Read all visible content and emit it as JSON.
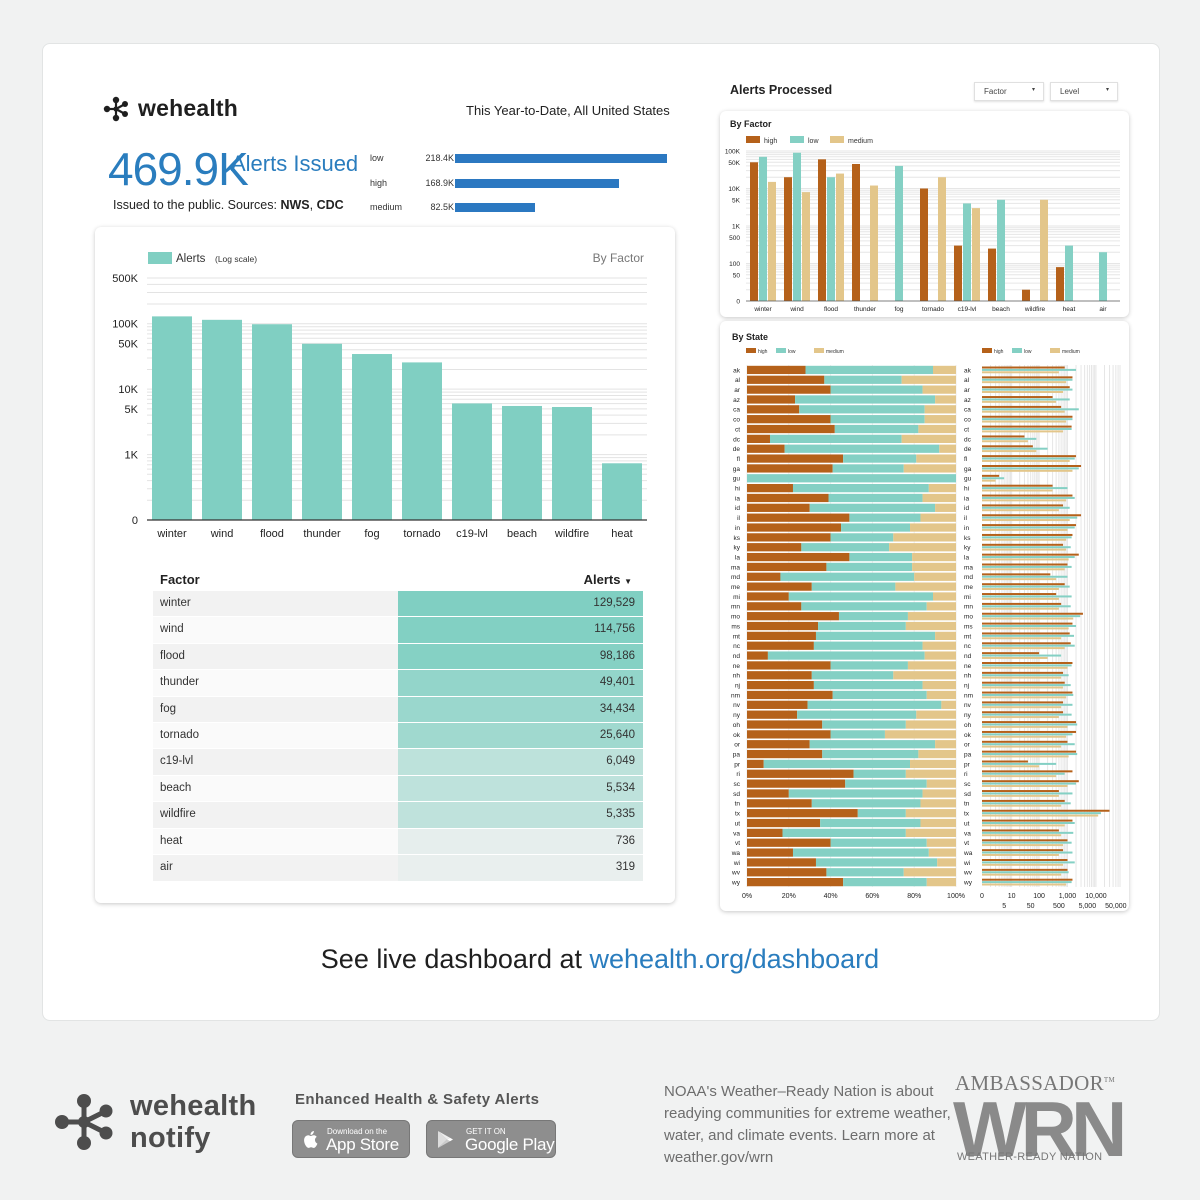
{
  "brand": {
    "name": "wehealth",
    "logo_icon": "wehealth-molecule-icon"
  },
  "header": {
    "scope": "This Year-to-Date, All United States",
    "total": "469.9K",
    "total_label": "Alerts Issued",
    "issued_prefix": "Issued to the public. Sources: ",
    "source1": "NWS",
    "source_sep": ", ",
    "source2": "CDC"
  },
  "levels": [
    {
      "name": "low",
      "value_label": "218.4K",
      "value": 218400
    },
    {
      "name": "high",
      "value_label": "168.9K",
      "value": 168900
    },
    {
      "name": "medium",
      "value_label": "82.5K",
      "value": 82500
    }
  ],
  "colors": {
    "accent_blue": "#2a7dbe",
    "teal": "#80cfc2",
    "high": "#b5611a",
    "low": "#84d0c4",
    "medium": "#e3c68a"
  },
  "chart_data": [
    {
      "type": "bar",
      "legend": "Alerts",
      "legend_note": "(Log scale)",
      "subtitle": "By Factor",
      "scale": "log",
      "ylim": [
        0,
        500000
      ],
      "yticks": [
        "500K",
        "100K",
        "50K",
        "10K",
        "5K",
        "1K",
        "0"
      ],
      "categories": [
        "winter",
        "wind",
        "flood",
        "thunder",
        "fog",
        "tornado",
        "c19-lvl",
        "beach",
        "wildfire",
        "heat"
      ],
      "values": [
        129529,
        114756,
        98186,
        49401,
        34434,
        25640,
        6049,
        5534,
        5335,
        736
      ]
    },
    {
      "type": "table",
      "columns": [
        "Factor",
        "Alerts"
      ],
      "sort_indicator": "▼",
      "rows": [
        {
          "factor": "winter",
          "alerts": "129,529",
          "value": 129529
        },
        {
          "factor": "wind",
          "alerts": "114,756",
          "value": 114756
        },
        {
          "factor": "flood",
          "alerts": "98,186",
          "value": 98186
        },
        {
          "factor": "thunder",
          "alerts": "49,401",
          "value": 49401
        },
        {
          "factor": "fog",
          "alerts": "34,434",
          "value": 34434
        },
        {
          "factor": "tornado",
          "alerts": "25,640",
          "value": 25640
        },
        {
          "factor": "c19-lvl",
          "alerts": "6,049",
          "value": 6049
        },
        {
          "factor": "beach",
          "alerts": "5,534",
          "value": 5534
        },
        {
          "factor": "wildfire",
          "alerts": "5,335",
          "value": 5335
        },
        {
          "factor": "heat",
          "alerts": "736",
          "value": 736
        },
        {
          "factor": "air",
          "alerts": "319",
          "value": 319
        }
      ]
    },
    {
      "type": "bar",
      "title": "By Factor",
      "scale": "log",
      "yticks": [
        "100K",
        "50K",
        "10K",
        "5K",
        "1K",
        "500",
        "100",
        "50",
        "0"
      ],
      "categories": [
        "winter",
        "wind",
        "flood",
        "thunder",
        "fog",
        "tornado",
        "c19-lvl",
        "beach",
        "wildfire",
        "heat",
        "air"
      ],
      "series": [
        {
          "name": "high",
          "values": [
            50000,
            20000,
            60000,
            45000,
            0,
            10000,
            300,
            250,
            20,
            80,
            10
          ]
        },
        {
          "name": "low",
          "values": [
            70000,
            90000,
            20000,
            0,
            40000,
            0,
            4000,
            5000,
            0,
            300,
            200
          ]
        },
        {
          "name": "medium",
          "values": [
            15000,
            8000,
            25000,
            12000,
            0,
            20000,
            3000,
            0,
            5000,
            0,
            0
          ]
        }
      ]
    },
    {
      "type": "bar",
      "title": "By State",
      "stacked_percent": true,
      "xticks": [
        "0%",
        "20%",
        "40%",
        "60%",
        "80%",
        "100%"
      ],
      "log_xticks_top": [
        "0",
        "10",
        "100",
        "1,000",
        "10,000"
      ],
      "log_xticks_bottom": [
        "5",
        "50",
        "500",
        "5,000",
        "50,000"
      ],
      "series_names": [
        "high",
        "low",
        "medium"
      ],
      "states": [
        "ak",
        "al",
        "ar",
        "az",
        "ca",
        "co",
        "ct",
        "dc",
        "de",
        "fl",
        "ga",
        "gu",
        "hi",
        "ia",
        "id",
        "il",
        "in",
        "ks",
        "ky",
        "la",
        "ma",
        "md",
        "me",
        "mi",
        "mn",
        "mo",
        "ms",
        "mt",
        "nc",
        "nd",
        "ne",
        "nh",
        "nj",
        "nm",
        "nv",
        "ny",
        "oh",
        "ok",
        "or",
        "pa",
        "pr",
        "ri",
        "sc",
        "sd",
        "tn",
        "tx",
        "ut",
        "va",
        "vt",
        "wa",
        "wi",
        "wv",
        "wy"
      ],
      "high_pct": [
        28,
        37,
        40,
        23,
        25,
        40,
        42,
        11,
        18,
        46,
        41,
        0,
        22,
        39,
        30,
        49,
        45,
        40,
        26,
        49,
        38,
        16,
        31,
        20,
        26,
        44,
        34,
        33,
        32,
        10,
        40,
        31,
        32,
        41,
        29,
        24,
        36,
        40,
        30,
        36,
        8,
        51,
        47,
        20,
        31,
        53,
        35,
        17,
        40,
        22,
        33,
        38,
        46
      ],
      "low_pct": [
        61,
        37,
        44,
        67,
        60,
        45,
        40,
        63,
        74,
        35,
        34,
        100,
        65,
        45,
        60,
        34,
        33,
        30,
        42,
        30,
        41,
        64,
        40,
        69,
        60,
        33,
        42,
        57,
        52,
        75,
        37,
        39,
        52,
        45,
        64,
        57,
        40,
        26,
        60,
        46,
        70,
        25,
        39,
        64,
        52,
        23,
        48,
        59,
        46,
        65,
        58,
        37,
        40
      ],
      "vals_high": [
        800,
        1500,
        1200,
        300,
        600,
        1500,
        1400,
        30,
        60,
        2000,
        3000,
        3,
        300,
        1500,
        700,
        3000,
        2000,
        1500,
        700,
        2500,
        1000,
        250,
        800,
        400,
        600,
        3500,
        1500,
        1200,
        1300,
        100,
        1500,
        700,
        800,
        1500,
        700,
        700,
        2000,
        2000,
        1000,
        2000,
        40,
        1500,
        2500,
        500,
        800,
        30000,
        1500,
        500,
        1000,
        700,
        1000,
        1000,
        1500
      ],
      "vals_low": [
        2000,
        1500,
        1500,
        1200,
        2500,
        1500,
        1400,
        80,
        200,
        1800,
        2500,
        5,
        1000,
        1800,
        1200,
        2200,
        1800,
        1400,
        1300,
        1800,
        1400,
        1000,
        1200,
        1400,
        1300,
        2800,
        2000,
        1700,
        1800,
        600,
        1400,
        1100,
        1300,
        1600,
        1500,
        1400,
        2200,
        1500,
        1800,
        2200,
        400,
        800,
        2000,
        1500,
        1300,
        15000,
        1800,
        1600,
        1400,
        1500,
        1800,
        1100,
        1400
      ],
      "vals_med": [
        500,
        900,
        700,
        400,
        800,
        900,
        700,
        40,
        80,
        1200,
        1500,
        2,
        300,
        900,
        500,
        1200,
        1000,
        900,
        900,
        1100,
        800,
        400,
        500,
        500,
        500,
        1600,
        1100,
        600,
        800,
        200,
        1000,
        600,
        700,
        900,
        600,
        500,
        1000,
        900,
        600,
        1100,
        100,
        400,
        1000,
        500,
        600,
        12000,
        800,
        600,
        700,
        500,
        700,
        600,
        900
      ]
    }
  ],
  "right_header": {
    "title": "Alerts Processed",
    "dropdown_factor": "Factor",
    "dropdown_level": "Level",
    "caret": "▾"
  },
  "footer": {
    "live_prefix": "See live dashboard at ",
    "live_link": "wehealth.org/dashboard",
    "notify_line1": "wehealth",
    "notify_line2": "notify",
    "enhanced": "Enhanced Health & Safety Alerts",
    "appstore_small": "Download on the",
    "appstore_big": "App Store",
    "play_small": "GET IT ON",
    "play_big": "Google Play",
    "noaa_text": "NOAA's Weather–Ready Nation is about readying communities for extreme weather, water, and climate events. Learn more at weather.gov/wrn",
    "ambassador": "AMBASSADOR",
    "tm": "TM",
    "wrn": "WRN",
    "wrn_nation": "WEATHER-READY NATION"
  }
}
